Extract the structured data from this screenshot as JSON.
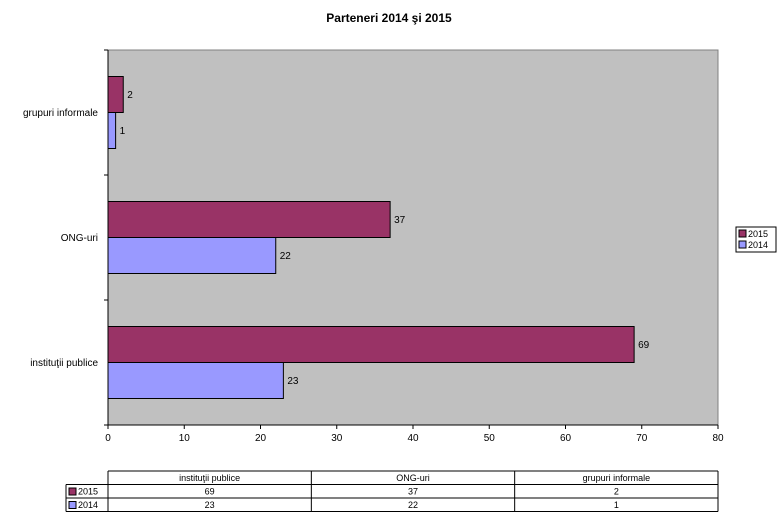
{
  "chart_data": {
    "type": "bar",
    "orientation": "horizontal",
    "title": "Parteneri 2014 şi 2015",
    "categories": [
      "instituţii publice",
      "ONG-uri",
      "grupuri informale"
    ],
    "series": [
      {
        "name": "2015",
        "values": [
          69,
          37,
          2
        ],
        "color": "#993366"
      },
      {
        "name": "2014",
        "values": [
          23,
          22,
          1
        ],
        "color": "#9999ff"
      }
    ],
    "xlim": [
      0,
      80
    ],
    "xticks": [
      0,
      10,
      20,
      30,
      40,
      50,
      60,
      70,
      80
    ],
    "plot_background": "#c0c0c0",
    "grid": false,
    "legend": "right",
    "data_table": true
  }
}
